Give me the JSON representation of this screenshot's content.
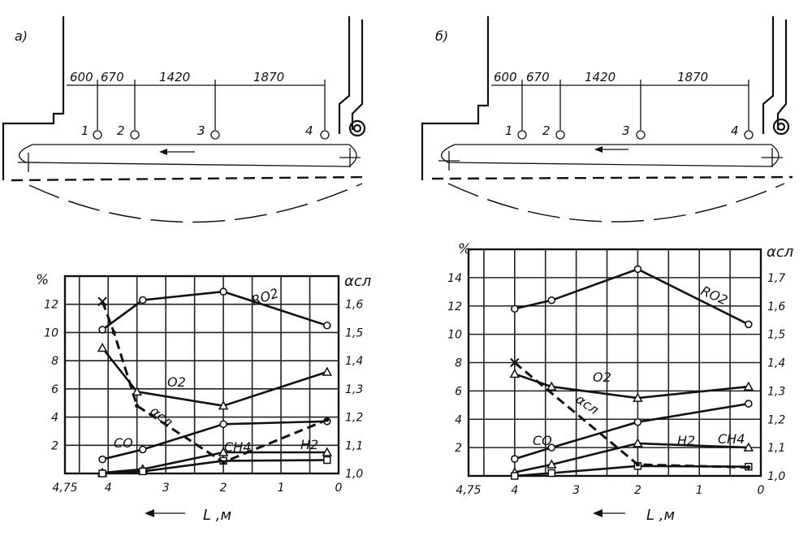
{
  "figure": {
    "panels": [
      {
        "label": "а)",
        "dimensions": [
          "600",
          "670",
          "1420",
          "1870"
        ],
        "points": [
          "1",
          "2",
          "3",
          "4"
        ]
      },
      {
        "label": "б)",
        "dimensions": [
          "600",
          "670",
          "1420",
          "1870"
        ],
        "points": [
          "1",
          "2",
          "3",
          "4"
        ]
      }
    ]
  },
  "chart_data": [
    {
      "type": "line",
      "panel": "а)",
      "xlabel": "L ,м",
      "ylabel": "%",
      "y2label": "αсл",
      "xlim": [
        4.75,
        0
      ],
      "ylim": [
        0,
        14
      ],
      "y2lim": [
        1.0,
        1.7
      ],
      "x_ticks": [
        "4,75",
        "4",
        "3",
        "2",
        "1",
        "0"
      ],
      "y_ticks": [
        "2",
        "4",
        "6",
        "8",
        "10",
        "12"
      ],
      "y2_ticks": [
        "1,0",
        "1,1",
        "1,2",
        "1,3",
        "1,4",
        "1,5",
        "1,6"
      ],
      "grid": true,
      "series": [
        {
          "name": "RO2",
          "marker": "circle",
          "style": "solid",
          "x": [
            4.1,
            3.4,
            2.0,
            0.2
          ],
          "y": [
            10.2,
            12.3,
            12.9,
            10.5
          ]
        },
        {
          "name": "O2",
          "marker": "triangle",
          "style": "solid",
          "x": [
            4.1,
            3.5,
            2.0,
            0.2
          ],
          "y": [
            8.9,
            5.8,
            4.8,
            7.2
          ]
        },
        {
          "name": "CO",
          "marker": "circle",
          "style": "solid",
          "x": [
            4.1,
            3.4,
            2.0,
            0.2
          ],
          "y": [
            1.0,
            1.7,
            3.5,
            3.7
          ]
        },
        {
          "name": "CH4",
          "marker": "triangle",
          "style": "solid",
          "x": [
            4.1,
            3.4,
            2.0,
            0.2
          ],
          "y": [
            0.05,
            0.3,
            1.5,
            1.5
          ]
        },
        {
          "name": "H2",
          "marker": "square",
          "style": "solid",
          "x": [
            4.1,
            3.4,
            2.0,
            0.2
          ],
          "y": [
            0.0,
            0.15,
            0.9,
            0.95
          ]
        },
        {
          "name": "αсл",
          "axis": "y2",
          "marker": "x",
          "style": "dashed",
          "x": [
            4.1,
            3.9,
            3.5,
            2.0,
            0.2
          ],
          "y": [
            1.61,
            1.5,
            1.24,
            1.04,
            1.19
          ]
        }
      ]
    },
    {
      "type": "line",
      "panel": "б)",
      "xlabel": "L ,м",
      "ylabel": "%",
      "y2label": "αсл",
      "xlim": [
        4.75,
        0
      ],
      "ylim": [
        0,
        16
      ],
      "y2lim": [
        1.0,
        1.8
      ],
      "x_ticks": [
        "4,75",
        "4",
        "3",
        "2",
        "1",
        "0"
      ],
      "y_ticks": [
        "2",
        "4",
        "6",
        "8",
        "10",
        "12",
        "14"
      ],
      "y2_ticks": [
        "1,0",
        "1,1",
        "1,2",
        "1,3",
        "1,4",
        "1,5",
        "1,6",
        "1,7"
      ],
      "grid": true,
      "series": [
        {
          "name": "RO2",
          "marker": "circle",
          "style": "solid",
          "x": [
            4.0,
            3.4,
            2.0,
            0.2
          ],
          "y": [
            11.8,
            12.4,
            14.6,
            10.7
          ]
        },
        {
          "name": "O2",
          "marker": "triangle",
          "style": "solid",
          "x": [
            4.0,
            3.4,
            2.0,
            0.2
          ],
          "y": [
            7.2,
            6.3,
            5.5,
            6.3
          ]
        },
        {
          "name": "CO",
          "marker": "circle",
          "style": "solid",
          "x": [
            4.0,
            3.4,
            2.0,
            0.2
          ],
          "y": [
            1.2,
            2.0,
            3.8,
            5.1
          ]
        },
        {
          "name": "H2",
          "marker": "triangle",
          "style": "solid",
          "x": [
            4.0,
            3.4,
            2.0,
            0.2
          ],
          "y": [
            0.25,
            0.8,
            2.3,
            2.0
          ]
        },
        {
          "name": "CH4",
          "marker": "square",
          "style": "solid",
          "x": [
            4.0,
            3.4,
            2.0,
            0.2
          ],
          "y": [
            0.0,
            0.2,
            0.7,
            0.65
          ]
        },
        {
          "name": "αсл",
          "axis": "y2",
          "marker": "x",
          "style": "dashed",
          "x": [
            4.0,
            2.0,
            0.2
          ],
          "y": [
            1.4,
            1.04,
            1.03
          ]
        }
      ]
    }
  ]
}
